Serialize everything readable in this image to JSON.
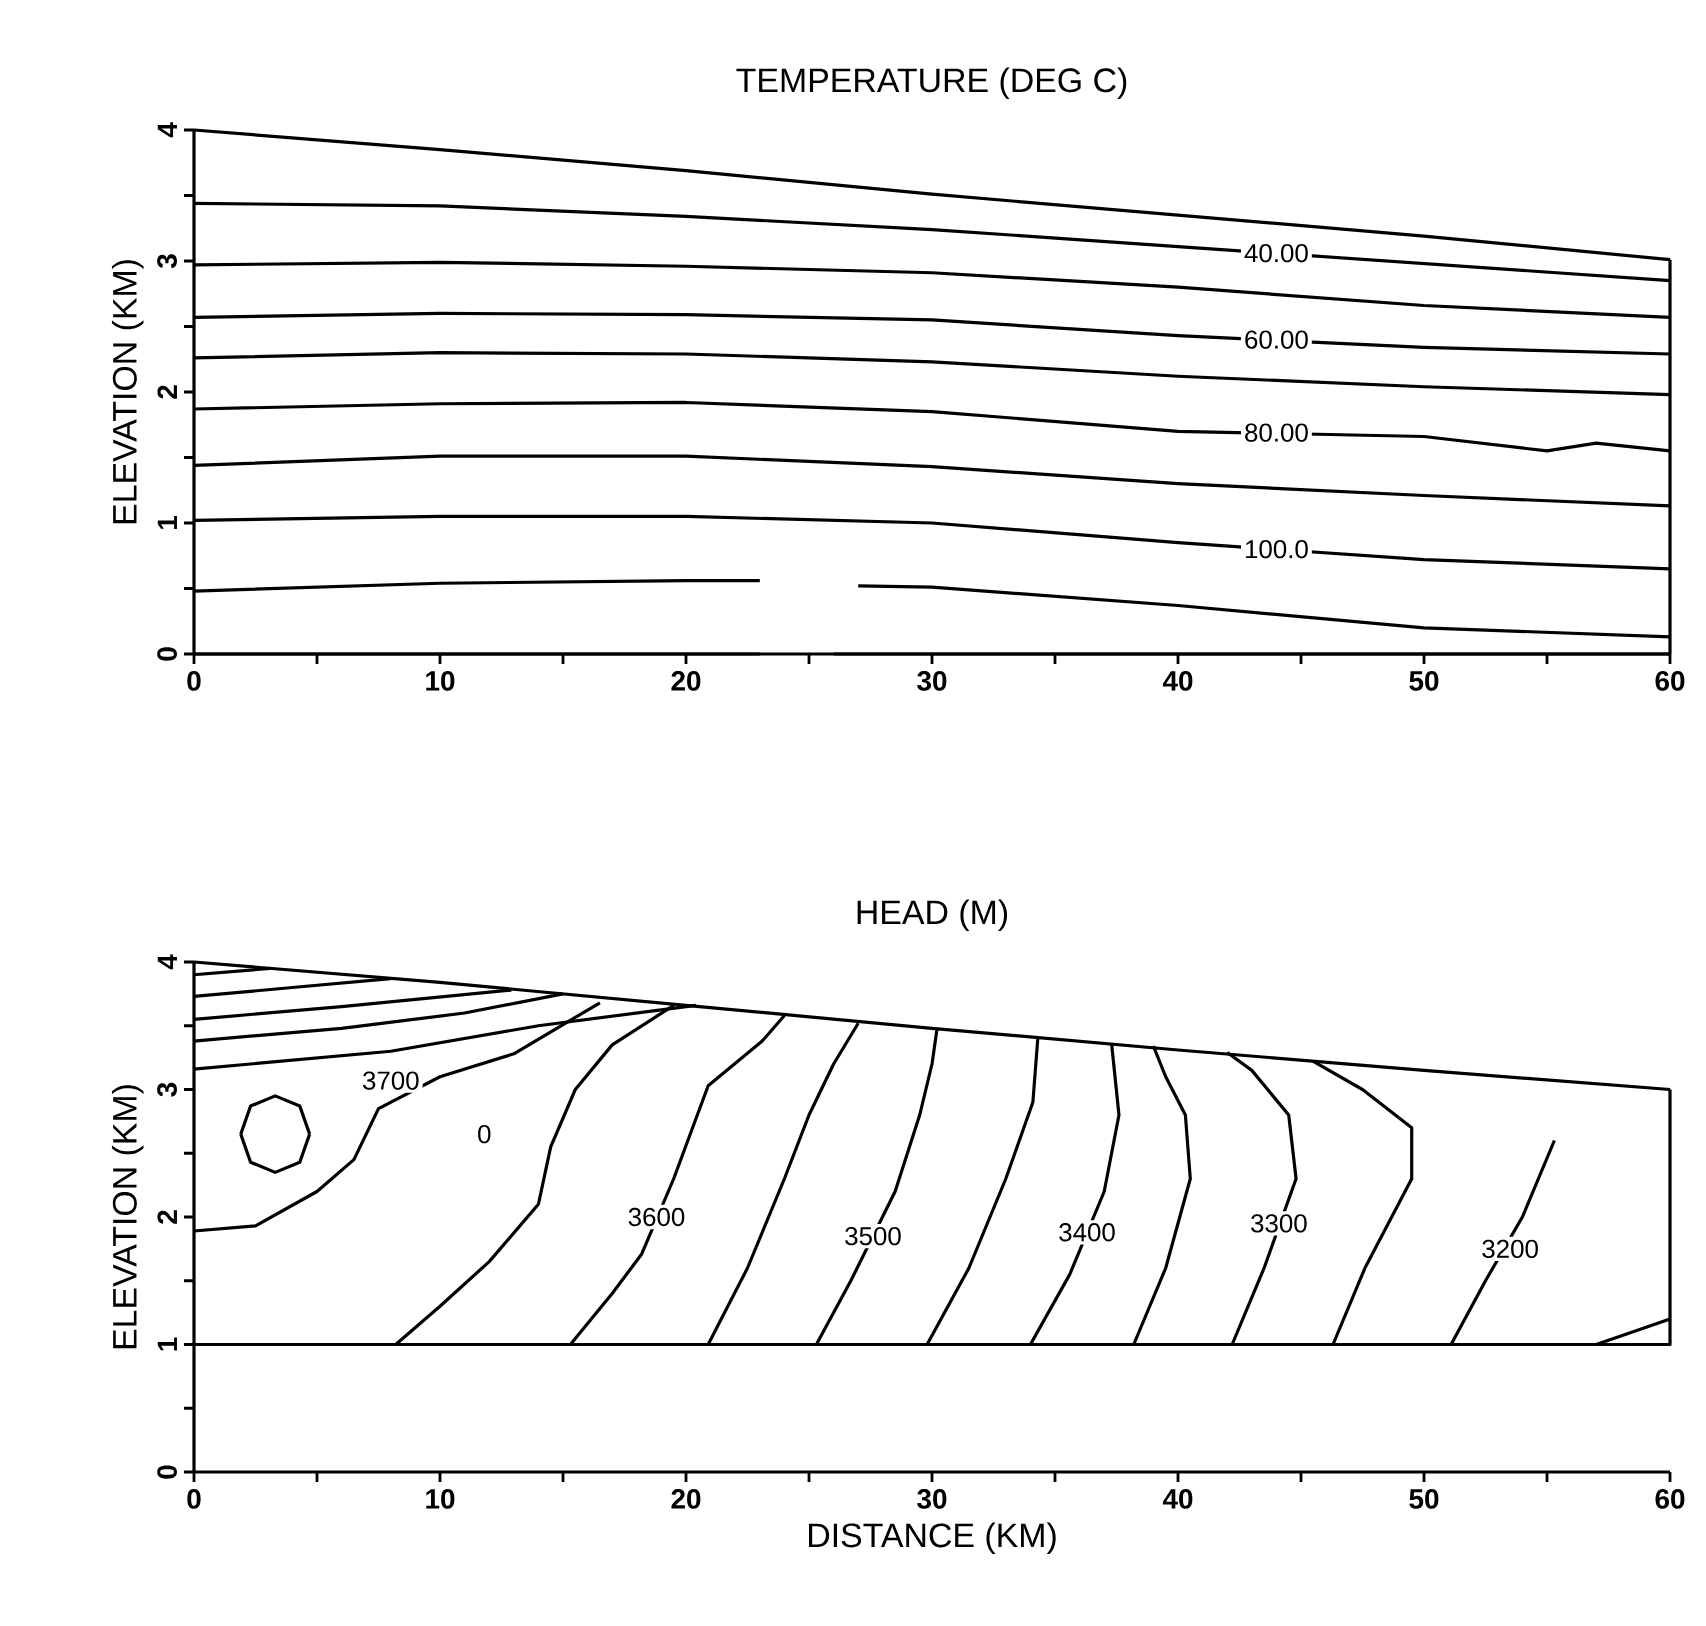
{
  "chart_data": [
    {
      "type": "line",
      "title": "TEMPERATURE (DEG C)",
      "ylabel": "ELEVATION (KM)",
      "xlim": [
        0,
        60
      ],
      "ylim": [
        0,
        4
      ],
      "xticks": [
        0,
        {
          "value": 5,
          "label": null
        },
        10,
        {
          "value": 15,
          "label": null
        },
        20,
        {
          "value": 25,
          "label": null
        },
        30,
        {
          "value": 35,
          "label": null
        },
        40,
        {
          "value": 45,
          "label": null
        },
        50,
        {
          "value": 55,
          "label": null
        },
        60
      ],
      "yticks": [
        0,
        {
          "value": 0.5,
          "label": null
        },
        1,
        {
          "value": 1.5,
          "label": null
        },
        2,
        {
          "value": 2.5,
          "label": null
        },
        3,
        {
          "value": 3.5,
          "label": null
        },
        4
      ],
      "legend": false,
      "grid": false,
      "series": [
        {
          "color": "#000000",
          "x": [
            0,
            10,
            20,
            30,
            40,
            50,
            60
          ],
          "values": [
            4.0,
            3.85,
            3.69,
            3.51,
            3.35,
            3.19,
            3.01
          ]
        },
        {
          "color": "#000000",
          "x": [
            60,
            60
          ],
          "values": [
            0,
            3.01
          ]
        },
        {
          "color": "#000000",
          "x": [
            0,
            10,
            20,
            30,
            40,
            50,
            60
          ],
          "values": [
            3.44,
            3.42,
            3.34,
            3.24,
            3.11,
            2.98,
            2.85
          ]
        },
        {
          "color": "#000000",
          "x": [
            0,
            10,
            20,
            30,
            40,
            50,
            60
          ],
          "values": [
            2.97,
            2.99,
            2.96,
            2.91,
            2.8,
            2.66,
            2.57
          ]
        },
        {
          "color": "#000000",
          "x": [
            0,
            10,
            20,
            30,
            40,
            50,
            60
          ],
          "values": [
            2.57,
            2.6,
            2.59,
            2.55,
            2.43,
            2.34,
            2.29
          ]
        },
        {
          "color": "#000000",
          "x": [
            0,
            10,
            20,
            30,
            40,
            50,
            60
          ],
          "values": [
            2.26,
            2.3,
            2.29,
            2.23,
            2.12,
            2.04,
            1.98
          ]
        },
        {
          "color": "#000000",
          "x": [
            0,
            10,
            20,
            30,
            40,
            50,
            55,
            57,
            60
          ],
          "values": [
            1.87,
            1.91,
            1.92,
            1.85,
            1.7,
            1.66,
            1.55,
            1.61,
            1.55
          ]
        },
        {
          "color": "#000000",
          "x": [
            0,
            10,
            20,
            30,
            40,
            50,
            60
          ],
          "values": [
            1.44,
            1.51,
            1.51,
            1.43,
            1.3,
            1.21,
            1.13
          ]
        },
        {
          "color": "#000000",
          "x": [
            0,
            10,
            20,
            30,
            40,
            50,
            60
          ],
          "values": [
            1.02,
            1.05,
            1.05,
            1.0,
            0.85,
            0.72,
            0.65
          ]
        },
        {
          "color": "#000000",
          "x": [
            0,
            10,
            20,
            23,
            25,
            27,
            30,
            40,
            50,
            60
          ],
          "values": [
            0.48,
            0.54,
            0.56,
            0.56,
            null,
            0.52,
            0.51,
            0.37,
            0.2,
            0.13
          ]
        },
        {
          "color": "#000000",
          "x": [
            0,
            23,
            25,
            26,
            60
          ],
          "values": [
            0.0,
            0.0,
            null,
            0.0,
            0.0
          ]
        }
      ],
      "annotations": [
        {
          "text": "40.00",
          "x": 44,
          "y": 3.06
        },
        {
          "text": "60.00",
          "x": 44,
          "y": 2.4
        },
        {
          "text": "80.00",
          "x": 44,
          "y": 1.69
        },
        {
          "text": "100.0",
          "x": 44,
          "y": 0.8
        }
      ]
    },
    {
      "type": "line",
      "title": "HEAD (M)",
      "xlabel": "DISTANCE (KM)",
      "ylabel": "ELEVATION (KM)",
      "xlim": [
        0,
        60
      ],
      "ylim": [
        0,
        4
      ],
      "xticks": [
        0,
        {
          "value": 5,
          "label": null
        },
        10,
        {
          "value": 15,
          "label": null
        },
        20,
        {
          "value": 25,
          "label": null
        },
        30,
        {
          "value": 35,
          "label": null
        },
        40,
        {
          "value": 45,
          "label": null
        },
        50,
        {
          "value": 55,
          "label": null
        },
        60
      ],
      "yticks": [
        0,
        {
          "value": 0.5,
          "label": null
        },
        1,
        {
          "value": 1.5,
          "label": null
        },
        2,
        {
          "value": 2.5,
          "label": null
        },
        3,
        {
          "value": 3.5,
          "label": null
        },
        4
      ],
      "legend": false,
      "grid": false,
      "series": [
        {
          "color": "#000000",
          "x": [
            0,
            10,
            20,
            30,
            40,
            50,
            60
          ],
          "values": [
            4.0,
            3.84,
            3.66,
            3.48,
            3.31,
            3.15,
            3.0
          ]
        },
        {
          "color": "#000000",
          "x": [
            0,
            60,
            60
          ],
          "values": [
            1.0,
            1.0,
            3.0
          ]
        },
        {
          "color": "#000000",
          "x": [
            0,
            8,
            14,
            20.4
          ],
          "values": [
            3.16,
            3.3,
            3.5,
            3.66
          ]
        },
        {
          "color": "#000000",
          "x": [
            0,
            6,
            11,
            15
          ],
          "values": [
            3.38,
            3.48,
            3.6,
            3.75
          ]
        },
        {
          "color": "#000000",
          "x": [
            0,
            6,
            12.9
          ],
          "values": [
            3.55,
            3.65,
            3.78
          ]
        },
        {
          "color": "#000000",
          "x": [
            0,
            4,
            8
          ],
          "values": [
            3.73,
            3.8,
            3.87
          ]
        },
        {
          "color": "#000000",
          "x": [
            0,
            3.1
          ],
          "values": [
            3.9,
            3.95
          ]
        },
        {
          "color": "#000000",
          "x": [
            1.9,
            2.3,
            3.3,
            4.3,
            4.7
          ],
          "values": [
            2.65,
            2.87,
            2.95,
            2.87,
            2.65
          ]
        },
        {
          "color": "#000000",
          "x": [
            1.9,
            2.3,
            3.3,
            4.3,
            4.7
          ],
          "values": [
            2.65,
            2.43,
            2.35,
            2.43,
            2.65
          ]
        },
        {
          "color": "#000000",
          "x": [
            0,
            2.5,
            5,
            6.5,
            7.5,
            10,
            13,
            16.5
          ],
          "values": [
            1.89,
            1.93,
            2.2,
            2.45,
            2.85,
            3.1,
            3.28,
            3.68
          ]
        },
        {
          "color": "#000000",
          "x": [
            8.2,
            10,
            12,
            14,
            14.5,
            15.5,
            17,
            19.5
          ],
          "values": [
            1.0,
            1.3,
            1.65,
            2.1,
            2.55,
            3.0,
            3.35,
            3.66
          ]
        },
        {
          "color": "#000000",
          "x": [
            15.3,
            17,
            18.2,
            19.5,
            20.9,
            23.1,
            24
          ],
          "values": [
            1.0,
            1.4,
            1.71,
            2.3,
            3.03,
            3.38,
            3.58
          ]
        },
        {
          "color": "#000000",
          "x": [
            20.9,
            22.5,
            24,
            25,
            26,
            27
          ],
          "values": [
            1.0,
            1.6,
            2.3,
            2.8,
            3.2,
            3.52
          ]
        },
        {
          "color": "#000000",
          "x": [
            25.3,
            26.7,
            28.5,
            29.5,
            30,
            30.2
          ],
          "values": [
            1.0,
            1.5,
            2.2,
            2.8,
            3.2,
            3.47
          ]
        },
        {
          "color": "#000000",
          "x": [
            29.8,
            31.5,
            33,
            34.1,
            34.3
          ],
          "values": [
            1.0,
            1.6,
            2.3,
            2.9,
            3.4
          ]
        },
        {
          "color": "#000000",
          "x": [
            34,
            35.6,
            37,
            37.6,
            37.3
          ],
          "values": [
            1.0,
            1.55,
            2.2,
            2.8,
            3.36
          ]
        },
        {
          "color": "#000000",
          "x": [
            38.2,
            39.5,
            40.5,
            40.3,
            39.5,
            39
          ],
          "values": [
            1.0,
            1.6,
            2.3,
            2.8,
            3.1,
            3.34
          ]
        },
        {
          "color": "#000000",
          "x": [
            42.2,
            43.5,
            44.8,
            44.5,
            43,
            42
          ],
          "values": [
            1.0,
            1.6,
            2.3,
            2.8,
            3.15,
            3.29
          ]
        },
        {
          "color": "#000000",
          "x": [
            46.3,
            47.6,
            49.5,
            49.5,
            47.5,
            45.5
          ],
          "values": [
            1.0,
            1.6,
            2.3,
            2.7,
            3.0,
            3.22
          ]
        },
        {
          "color": "#000000",
          "x": [
            51.1,
            52.5,
            54,
            55.3
          ],
          "values": [
            1.0,
            1.5,
            2.0,
            2.6
          ]
        },
        {
          "color": "#000000",
          "x": [
            57,
            58.5,
            60
          ],
          "values": [
            1.0,
            1.1,
            1.2
          ]
        }
      ],
      "annotations": [
        {
          "text": "3700",
          "x": 8,
          "y": 3.07
        },
        {
          "text": "0",
          "x": 11.8,
          "y": 2.65
        },
        {
          "text": "3600",
          "x": 18.8,
          "y": 2.0
        },
        {
          "text": "3500",
          "x": 27.6,
          "y": 1.85
        },
        {
          "text": "3400",
          "x": 36.3,
          "y": 1.88
        },
        {
          "text": "3300",
          "x": 44.1,
          "y": 1.95
        },
        {
          "text": "3200",
          "x": 53.5,
          "y": 1.75
        }
      ]
    }
  ]
}
